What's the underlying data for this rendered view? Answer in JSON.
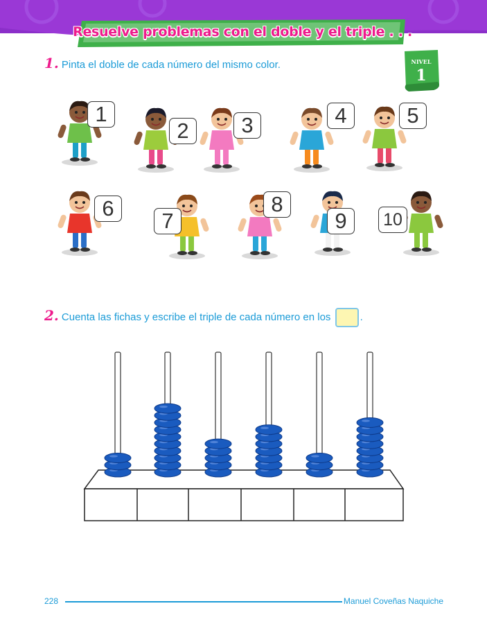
{
  "header": {
    "title": "Resuelve problemas con el doble y el triple . . ."
  },
  "level": {
    "label": "NIVEL",
    "number": "1"
  },
  "exercise1": {
    "number": "1.",
    "instruction": "Pinta el doble de cada número del mismo color.",
    "cards": [
      "1",
      "2",
      "3",
      "4",
      "5",
      "6",
      "7",
      "8",
      "9",
      "10"
    ]
  },
  "exercise2": {
    "number": "2.",
    "instruction_before": "Cuenta las fichas y escribe el triple de cada número en los",
    "instruction_after": ".",
    "bead_counts": [
      3,
      10,
      5,
      7,
      3,
      8
    ],
    "answers": [
      "",
      "",
      "",
      "",
      "",
      ""
    ]
  },
  "footer": {
    "page": "228",
    "author": "Manuel Coveñas Naquiche"
  },
  "colors": {
    "pink": "#ee1b8c",
    "blue": "#1b9bd7",
    "bead": "#1a5bbf",
    "banner": "#8b2fc9",
    "green": "#3fb04a"
  }
}
